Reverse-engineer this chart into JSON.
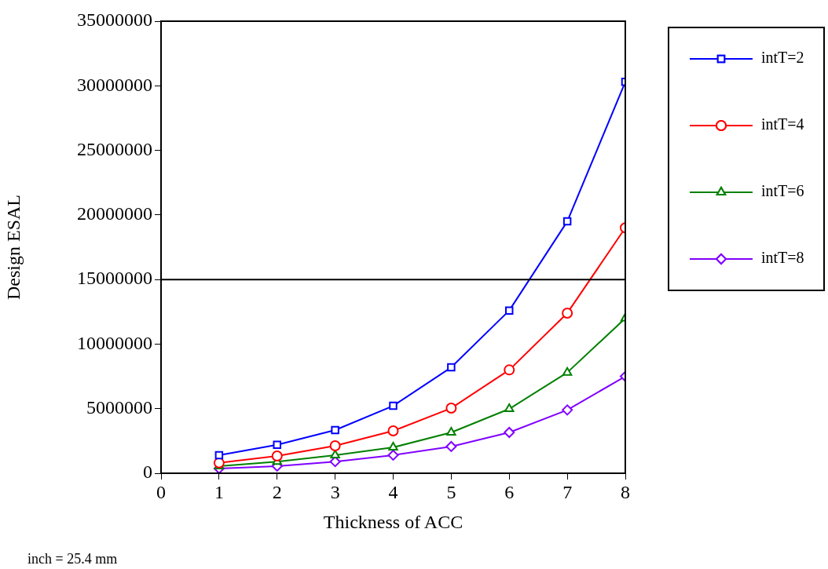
{
  "chart_data": {
    "type": "line",
    "xlabel": "Thickness of ACC",
    "ylabel": "Design ESAL",
    "xlim": [
      0,
      8
    ],
    "xticks": [
      0,
      1,
      2,
      3,
      4,
      5,
      6,
      7,
      8
    ],
    "ylim": [
      0,
      35000000
    ],
    "yticks": [
      0,
      5000000,
      10000000,
      15000000,
      20000000,
      25000000,
      30000000,
      35000000
    ],
    "grid": false,
    "legend": "right",
    "x": [
      1,
      2,
      3,
      4,
      5,
      6,
      7,
      8
    ],
    "series": [
      {
        "name": "intT=2",
        "color": "#0000ff",
        "marker": "square",
        "values": [
          1400000,
          2200000,
          3340000,
          5220000,
          8200000,
          12600000,
          19500000,
          30300000
        ]
      },
      {
        "name": "intT=4",
        "color": "#ff0000",
        "marker": "circle",
        "values": [
          800000,
          1340000,
          2130000,
          3280000,
          5040000,
          8000000,
          12400000,
          19000000
        ]
      },
      {
        "name": "intT=6",
        "color": "#008000",
        "marker": "triangle",
        "values": [
          550000,
          900000,
          1400000,
          2000000,
          3160000,
          4980000,
          7800000,
          12000000
        ]
      },
      {
        "name": "intT=8",
        "color": "#8000ff",
        "marker": "diamond",
        "values": [
          360000,
          550000,
          900000,
          1400000,
          2070000,
          3160000,
          4900000,
          7500000
        ]
      }
    ],
    "ref_lines": [
      {
        "axis": "y",
        "value": 15000000,
        "color": "#000000"
      }
    ],
    "annotations": [
      "inch = 25.4 mm"
    ]
  }
}
